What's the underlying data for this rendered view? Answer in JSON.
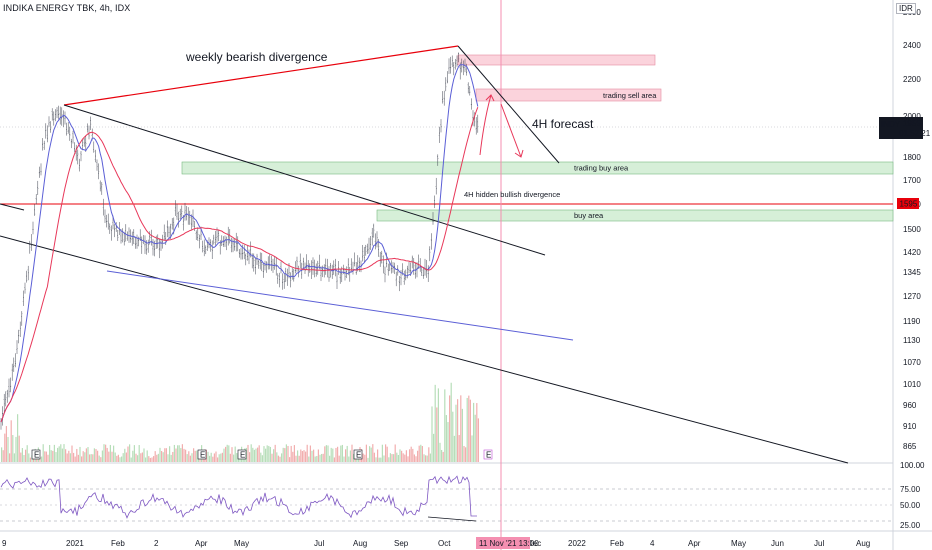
{
  "header": {
    "symbol": "INDIKA ENERGY TBK, 4h, IDX",
    "currency": "IDR"
  },
  "price_axis": {
    "ticks": [
      "2600",
      "2400",
      "2200",
      "2000",
      "1800",
      "1700",
      "1600",
      "1500",
      "1420",
      "1345",
      "1270",
      "1190",
      "1130",
      "1070",
      "1010",
      "960",
      "910",
      "865"
    ],
    "last_price": {
      "label": "INDY",
      "value": "1955",
      "countdown": "01:52:21",
      "color": "#131722"
    },
    "marked_price": {
      "value": "1595",
      "color": "#e8000b"
    }
  },
  "rsi_axis": {
    "ticks": [
      "100.00",
      "75.00",
      "50.00",
      "25.00"
    ]
  },
  "time_axis": {
    "ticks": [
      "9",
      "2021",
      "Feb",
      "2",
      "Apr",
      "May",
      "Jul",
      "Aug",
      "Sep",
      "Oct",
      "Dec",
      "2022",
      "Feb",
      "4",
      "Apr",
      "May",
      "Jun",
      "Jul",
      "Aug"
    ],
    "cursor_label": "11 Nov '21   13:00"
  },
  "annotations": {
    "weekly": "weekly bearish divergence",
    "sell_area": "trading sell area",
    "forecast": "4H forecast",
    "trading_buy": "trading buy area",
    "hidden_div": "4H hidden bullish divergence",
    "buy_area": "buy area"
  },
  "earnings_marker": "E",
  "colors": {
    "ma_fast": "#5b5fd6",
    "ma_slow": "#e8385a",
    "zone_green": "#c8e6c9",
    "zone_pink": "#f8c7d1",
    "trend_red": "#e8000b",
    "vol_up": "#a5d6a7",
    "vol_down": "#ef9a9a"
  }
}
